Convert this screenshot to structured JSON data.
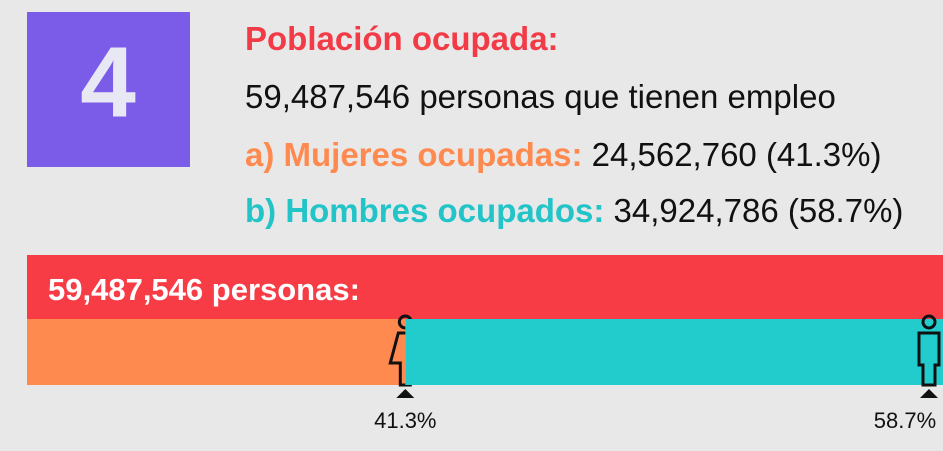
{
  "chart_data": {
    "type": "stacked_bar",
    "badge": "4",
    "title": "Población ocupada:",
    "subtitle": "59,487,546 personas que tienen empleo",
    "bar_label": "59,487,546 personas:",
    "bar_color": "#f73c46",
    "xlim": [
      0,
      100
    ],
    "series": [
      {
        "name": "a) Mujeres ocupadas:",
        "detail": "24,562,760 (41.3%)",
        "color": "#ff8a4f",
        "values": [
          41.3
        ],
        "value_labels": [
          "41.3%"
        ]
      },
      {
        "name": "b) Hombres ocupados:",
        "detail": "34,924,786 (58.7%)",
        "color": "#22cccc",
        "values": [
          58.7
        ],
        "value_labels": [
          "58.7%"
        ]
      }
    ]
  }
}
